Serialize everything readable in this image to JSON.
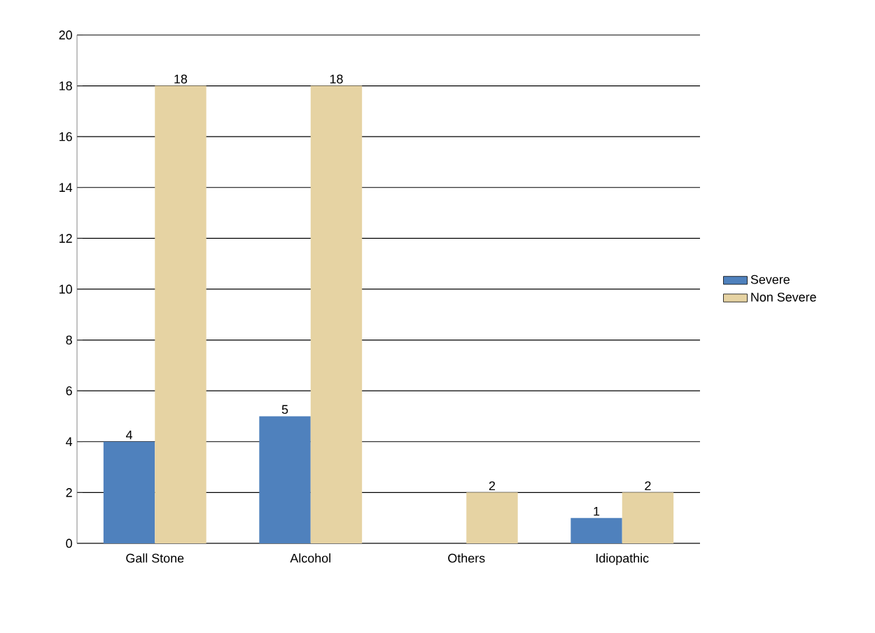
{
  "chart_data": {
    "type": "bar",
    "categories": [
      "Gall Stone",
      "Alcohol",
      "Others",
      "Idiopathic"
    ],
    "series": [
      {
        "name": "Severe",
        "color": "#4f81bd",
        "values": [
          4,
          5,
          0,
          1
        ],
        "value_labels": [
          "4",
          "5",
          null,
          "1"
        ]
      },
      {
        "name": "Non Severe",
        "color": "#e6d3a3",
        "values": [
          18,
          18,
          2,
          2
        ],
        "value_labels": [
          "18",
          "18",
          "2",
          "2"
        ]
      }
    ],
    "ylim": [
      0,
      20
    ],
    "yticks": [
      0,
      2,
      4,
      6,
      8,
      10,
      12,
      14,
      16,
      18,
      20
    ],
    "grid": "y",
    "legend": "right"
  }
}
